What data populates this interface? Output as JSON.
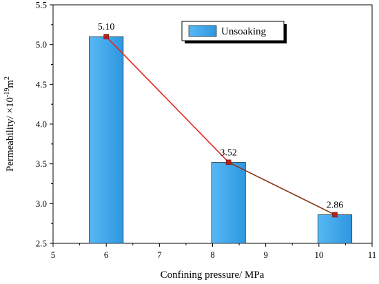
{
  "chart_data": {
    "type": "bar",
    "xlabel": "Confining pressure/ MPa",
    "ylabel": "Permeability/ ×10",
    "ylabel_sup": "-19",
    "ylabel_unit": "m",
    "ylabel_unit_sup": "2",
    "xlim": [
      5,
      11
    ],
    "ylim": [
      2.5,
      5.5
    ],
    "x_ticks": [
      5,
      6,
      7,
      8,
      9,
      10,
      11
    ],
    "y_ticks": [
      2.5,
      3.0,
      3.5,
      4.0,
      4.5,
      5.0,
      5.5
    ],
    "x_tick_labels": [
      "5",
      "6",
      "7",
      "8",
      "9",
      "10",
      "11"
    ],
    "y_tick_labels": [
      "2.5",
      "3.0",
      "3.5",
      "4.0",
      "4.5",
      "5.0",
      "5.5"
    ],
    "series": [
      {
        "name": "Unsoaking",
        "x": [
          6.0,
          8.3,
          10.3
        ],
        "values": [
          5.1,
          3.52,
          2.86
        ],
        "labels": [
          "5.10",
          "3.52",
          "2.86"
        ],
        "bar_color": "#3ea6ec"
      }
    ],
    "line_colors": [
      "#e8231e",
      "#8b3a1a"
    ],
    "marker_color": "#b3231e",
    "legend": {
      "placement": "top-right",
      "entries": [
        "Unsoaking"
      ]
    },
    "grid": false
  }
}
